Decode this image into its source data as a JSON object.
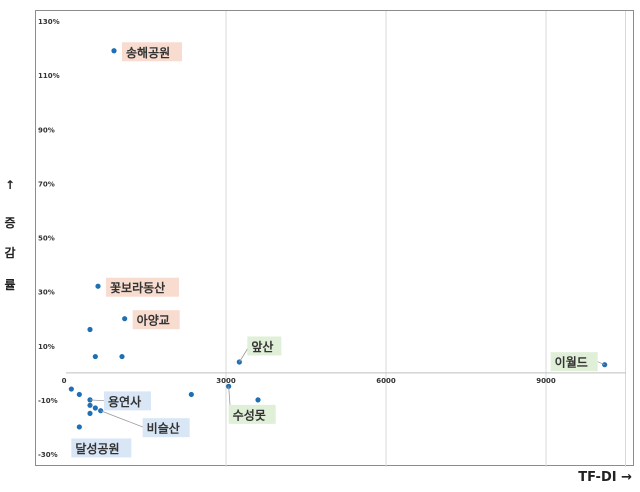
{
  "chart_data": {
    "type": "scatter",
    "xlabel": "TF-DI →",
    "ylabel_chars": [
      "↑",
      "증",
      "감",
      "률"
    ],
    "xlim": [
      0,
      10500
    ],
    "ylim": [
      -30,
      130
    ],
    "x_ticks": [
      "0",
      "3000",
      "6000",
      "9000"
    ],
    "x_tick_values": [
      0,
      3000,
      6000,
      9000
    ],
    "y_ticks": [
      "130%",
      "110%",
      "90%",
      "70%",
      "50%",
      "30%",
      "10%",
      "-10%",
      "-30%"
    ],
    "y_tick_values": [
      130,
      110,
      90,
      70,
      50,
      30,
      10,
      -10,
      -30
    ],
    "grid": "vertical",
    "colors": {
      "point": "#1f6fb5",
      "warm_label": "#f8dccf",
      "cool_label": "#d9e6f6",
      "green_label": "#e0efd7",
      "frame": "#8c8c8c",
      "grid": "#d9d9d9"
    },
    "points": [
      {
        "x": 900,
        "y": 119,
        "label": "송해공원",
        "style": "warm"
      },
      {
        "x": 600,
        "y": 32,
        "label": "꽃보라동산",
        "style": "warm"
      },
      {
        "x": 1100,
        "y": 20,
        "label": "아양교",
        "style": "warm"
      },
      {
        "x": 3250,
        "y": 4,
        "label": "앞산",
        "style": "green"
      },
      {
        "x": 3050,
        "y": -5,
        "label": "수성못",
        "style": "green"
      },
      {
        "x": 10100,
        "y": 3,
        "label": "이월드",
        "style": "green"
      },
      {
        "x": 450,
        "y": -10,
        "label": "용연사",
        "style": "cool"
      },
      {
        "x": 650,
        "y": -14,
        "label": "비슬산",
        "style": "cool"
      },
      {
        "x": 250,
        "y": -20,
        "label": "달성공원",
        "style": "cool"
      },
      {
        "x": 450,
        "y": 16,
        "label": "",
        "style": "none"
      },
      {
        "x": 550,
        "y": 6,
        "label": "",
        "style": "none"
      },
      {
        "x": 1050,
        "y": 6,
        "label": "",
        "style": "none"
      },
      {
        "x": 100,
        "y": -6,
        "label": "",
        "style": "none"
      },
      {
        "x": 250,
        "y": -8,
        "label": "",
        "style": "none"
      },
      {
        "x": 450,
        "y": -12,
        "label": "",
        "style": "none"
      },
      {
        "x": 550,
        "y": -13,
        "label": "",
        "style": "none"
      },
      {
        "x": 450,
        "y": -15,
        "label": "",
        "style": "none"
      },
      {
        "x": 2350,
        "y": -8,
        "label": "",
        "style": "none"
      },
      {
        "x": 3600,
        "y": -10,
        "label": "",
        "style": "none"
      }
    ]
  }
}
